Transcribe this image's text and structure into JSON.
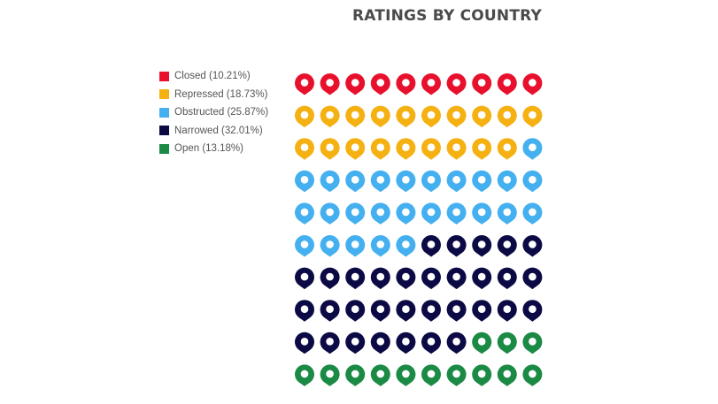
{
  "chart_data": {
    "type": "waffle",
    "title": "RATINGS BY COUNTRY",
    "grid": {
      "rows": 10,
      "columns": 10
    },
    "series": [
      {
        "name": "Closed",
        "label": "Closed (10.21%)",
        "percent": 10.21,
        "icons": 10,
        "color": "#e8112d"
      },
      {
        "name": "Repressed",
        "label": "Repressed (18.73%)",
        "percent": 18.73,
        "icons": 19,
        "color": "#f5b112"
      },
      {
        "name": "Obstructed",
        "label": "Obstructed (25.87%)",
        "percent": 25.87,
        "icons": 26,
        "color": "#45b0f0"
      },
      {
        "name": "Narrowed",
        "label": "Narrowed (32.01%)",
        "percent": 32.01,
        "icons": 32,
        "color": "#0c0a45"
      },
      {
        "name": "Open",
        "label": "Open (13.18%)",
        "percent": 13.18,
        "icons": 13,
        "color": "#1b8a45"
      }
    ],
    "icon": "map-pin-icon",
    "legend_position": "left"
  }
}
